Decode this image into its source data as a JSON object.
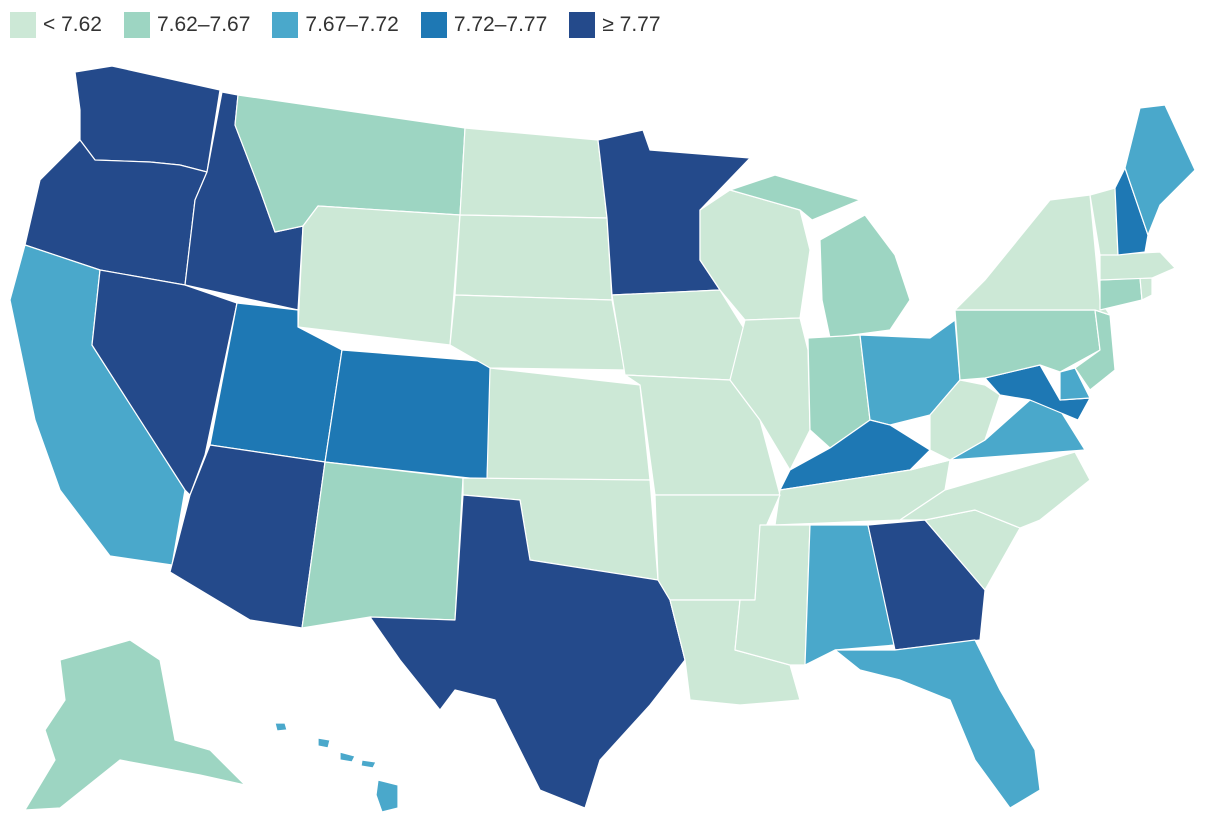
{
  "legend": [
    {
      "label": "< 7.62",
      "color": "#cce8d6"
    },
    {
      "label": "7.62–7.67",
      "color": "#9dd5c2"
    },
    {
      "label": "7.67–7.72",
      "color": "#4aa8cb"
    },
    {
      "label": "7.72–7.77",
      "color": "#1e78b4"
    },
    {
      "label": "≥ 7.77",
      "color": "#244a8b"
    }
  ],
  "states": {
    "WA": 4,
    "OR": 4,
    "ID": 4,
    "NV": 4,
    "AZ": 4,
    "TX": 4,
    "MN": 4,
    "GA": 4,
    "UT": 3,
    "CO": 3,
    "KY": 3,
    "NH": 3,
    "MD": 3,
    "CA": 2,
    "OH": 2,
    "VA": 2,
    "AL": 2,
    "FL": 2,
    "ME": 2,
    "HI": 2,
    "DE": 2,
    "MT": 1,
    "NM": 1,
    "MI": 1,
    "IN": 1,
    "PA": 1,
    "NJ": 1,
    "CT": 1,
    "AK": 1,
    "WY": 0,
    "ND": 0,
    "SD": 0,
    "NE": 0,
    "KS": 0,
    "OK": 0,
    "IA": 0,
    "MO": 0,
    "AR": 0,
    "LA": 0,
    "MS": 0,
    "TN": 0,
    "NC": 0,
    "SC": 0,
    "WV": 0,
    "WI": 0,
    "IL": 0,
    "NY": 0,
    "VT": 0,
    "MA": 0,
    "RI": 0
  }
}
